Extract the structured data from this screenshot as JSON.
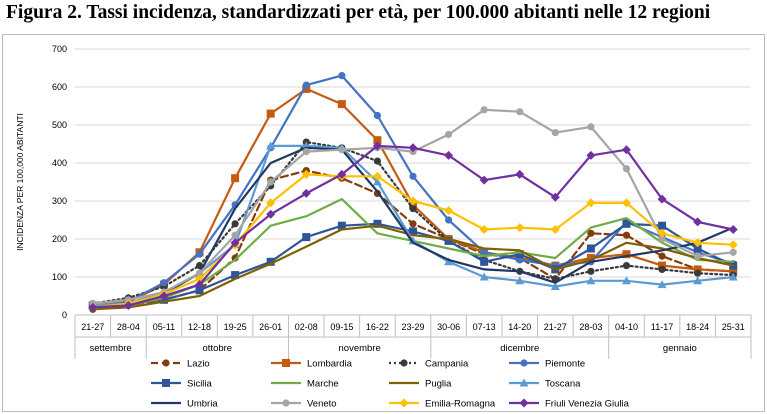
{
  "figure_title": "Figura 2. Tassi incidenza, standardizzati per età, per 100.000 abitanti nelle 12 regioni",
  "chart_data": {
    "type": "line",
    "ylabel": "INCIDENZA PER 100,000 ABITANTI",
    "xlabel": "",
    "ylim": [
      0,
      700
    ],
    "yticks": [
      0,
      100,
      200,
      300,
      400,
      500,
      600,
      700
    ],
    "grid": true,
    "legend_position": "bottom",
    "categories": [
      "21-27",
      "28-04",
      "05-11",
      "12-18",
      "19-25",
      "26-01",
      "02-08",
      "09-15",
      "16-22",
      "23-29",
      "30-06",
      "07-13",
      "14-20",
      "21-27",
      "28-03",
      "04-10",
      "11-17",
      "18-24",
      "25-31"
    ],
    "months": [
      {
        "label": "settembre",
        "span": 2
      },
      {
        "label": "ottobre",
        "span": 4
      },
      {
        "label": "novembre",
        "span": 4
      },
      {
        "label": "dicembre",
        "span": 5
      },
      {
        "label": "gennaio",
        "span": 4
      }
    ],
    "series": [
      {
        "name": "Lazio",
        "color": "#843c0c",
        "dash": "7,4",
        "marker": "circle",
        "values": [
          15,
          25,
          40,
          65,
          150,
          355,
          380,
          360,
          320,
          240,
          200,
          160,
          150,
          95,
          215,
          210,
          155,
          120,
          115
        ]
      },
      {
        "name": "Lombardia",
        "color": "#c55a11",
        "dash": "",
        "marker": "square",
        "values": [
          25,
          35,
          80,
          165,
          360,
          530,
          595,
          555,
          460,
          290,
          200,
          165,
          150,
          130,
          150,
          160,
          130,
          120,
          115
        ]
      },
      {
        "name": "Campania",
        "color": "#3a3a3a",
        "dash": "2,3",
        "marker": "circle",
        "values": [
          30,
          45,
          75,
          130,
          240,
          340,
          455,
          440,
          405,
          280,
          195,
          145,
          115,
          95,
          115,
          130,
          120,
          110,
          105
        ]
      },
      {
        "name": "Piemonte",
        "color": "#4472c4",
        "dash": "",
        "marker": "circle",
        "values": [
          20,
          35,
          85,
          160,
          290,
          440,
          605,
          630,
          525,
          365,
          250,
          165,
          145,
          130,
          140,
          245,
          205,
          165,
          135
        ]
      },
      {
        "name": "Sicilia",
        "color": "#2f5597",
        "dash": "",
        "marker": "square",
        "values": [
          25,
          30,
          40,
          65,
          105,
          140,
          205,
          235,
          240,
          220,
          195,
          140,
          160,
          120,
          175,
          240,
          235,
          175,
          130
        ]
      },
      {
        "name": "Marche",
        "color": "#70ad47",
        "dash": "",
        "marker": "none",
        "values": [
          20,
          25,
          45,
          80,
          145,
          235,
          260,
          305,
          215,
          195,
          175,
          155,
          165,
          150,
          230,
          255,
          190,
          145,
          140
        ]
      },
      {
        "name": "Puglia",
        "color": "#806000",
        "dash": "",
        "marker": "none",
        "values": [
          15,
          20,
          35,
          50,
          95,
          135,
          180,
          225,
          235,
          210,
          200,
          175,
          170,
          120,
          145,
          190,
          175,
          150,
          130
        ]
      },
      {
        "name": "Toscana",
        "color": "#5b9bd5",
        "dash": "",
        "marker": "triangle",
        "values": [
          25,
          30,
          60,
          110,
          185,
          445,
          445,
          440,
          350,
          195,
          140,
          100,
          90,
          75,
          90,
          90,
          80,
          90,
          100
        ]
      },
      {
        "name": "Umbria",
        "color": "#203864",
        "dash": "",
        "marker": "none",
        "values": [
          20,
          30,
          55,
          110,
          280,
          400,
          440,
          435,
          325,
          190,
          145,
          120,
          115,
          85,
          140,
          155,
          170,
          190,
          230
        ]
      },
      {
        "name": "Veneto",
        "color": "#a5a5a5",
        "dash": "",
        "marker": "circle",
        "values": [
          30,
          40,
          60,
          110,
          210,
          350,
          430,
          435,
          440,
          430,
          475,
          540,
          535,
          480,
          495,
          385,
          200,
          155,
          165
        ]
      },
      {
        "name": "Emilia-Romagna",
        "color": "#ffc000",
        "dash": "",
        "marker": "diamond",
        "values": [
          20,
          30,
          55,
          95,
          185,
          295,
          370,
          365,
          365,
          300,
          275,
          225,
          230,
          225,
          295,
          295,
          215,
          190,
          185
        ]
      },
      {
        "name": "Friuli Venezia Giulia",
        "color": "#7030a0",
        "dash": "",
        "marker": "diamond",
        "values": [
          20,
          25,
          50,
          80,
          190,
          265,
          320,
          370,
          445,
          440,
          420,
          355,
          370,
          310,
          420,
          435,
          305,
          245,
          225
        ]
      }
    ]
  }
}
